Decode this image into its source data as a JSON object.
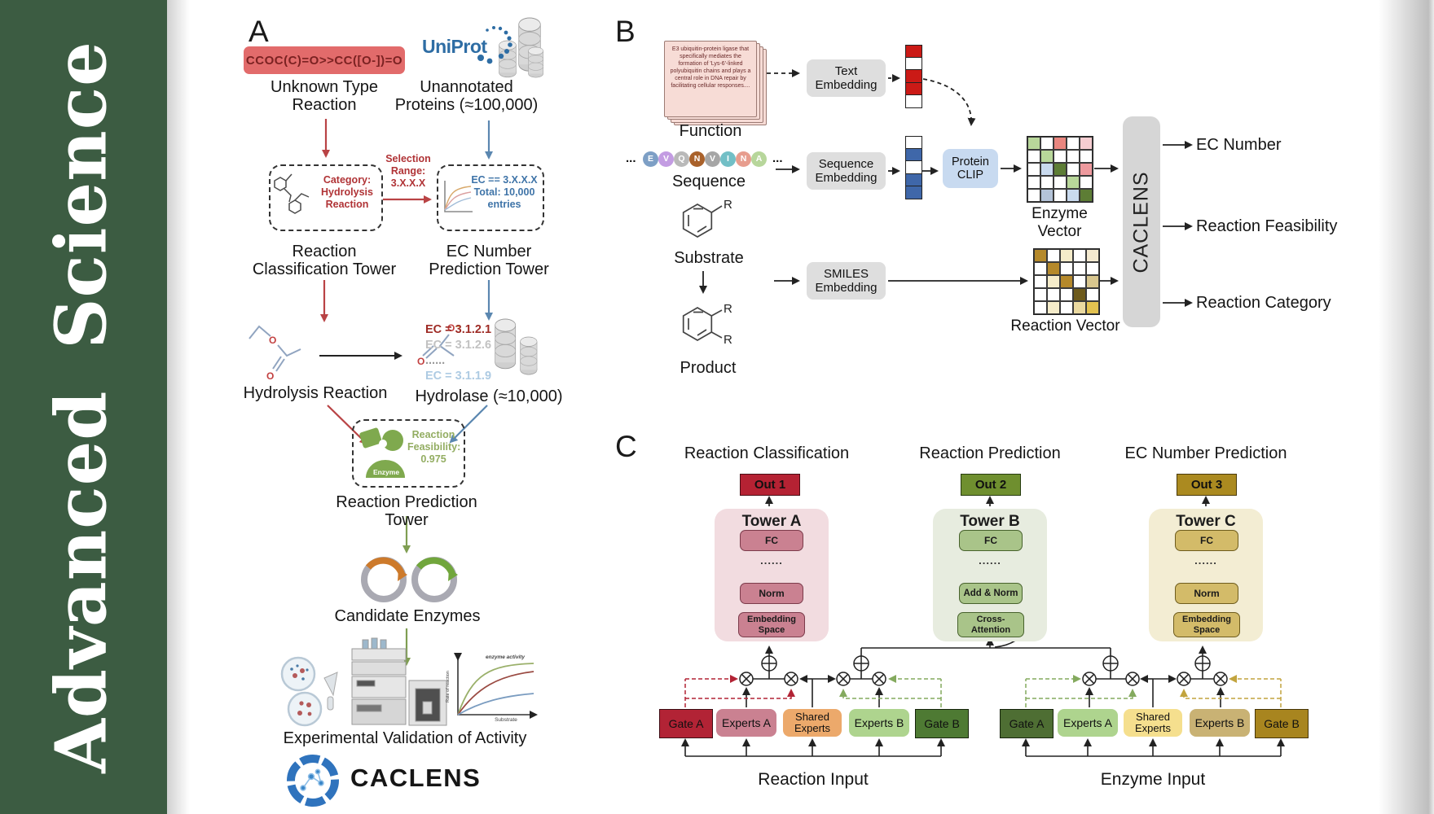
{
  "journal": {
    "name": "Advanced  Science",
    "bg": "#3c5c42"
  },
  "panelA": {
    "label": "A",
    "smiles": "CCOC(C)=O>>CC([O-])=O",
    "unknownLabel": "Unknown Type\nReaction",
    "uniprot": "UniProt",
    "unannotatedLabel": "Unannotated\nProteins (≈100,000)",
    "categoryBox": "Category:\nHydrolysis\nReaction",
    "selection": "Selection\nRange:\n3.X.X.X",
    "ecBox": "EC == 3.X.X.X\nTotal: 10,000\nentries",
    "classTower": "Reaction\nClassification Tower",
    "ecTower": "EC Number\nPrediction Tower",
    "hydrolysisLabel": "Hydrolysis Reaction",
    "ecList": [
      {
        "text": "EC = 3.1.2.1",
        "color": "#9e2b25"
      },
      {
        "text": "EC = 3.1.2.6",
        "color": "#c2c2c2"
      },
      {
        "text": "......",
        "color": "#9a9a9a"
      },
      {
        "text": "EC = 3.1.1.9",
        "color": "#aecbe3"
      }
    ],
    "hydrolaseLabel": "Hydrolase (≈10,000)",
    "enzymeIcon": "Enzyme",
    "feasibility": "Reaction\nFeasibility:\n0.975",
    "predTower": "Reaction Prediction Tower",
    "candidateLabel": "Candidate Enzymes",
    "graph": {
      "ylabel": "Rate of reaction",
      "xlabel": "Substrate",
      "series": "enzyme activity"
    },
    "validationLabel": "Experimental Validation of Activity",
    "brand": "CACLENS"
  },
  "panelB": {
    "label": "B",
    "functionText": "E3 ubiquitin-protein ligase that specifically mediates the formation of 'Lys-6'-linked polyubiquitin chains and plays a central role in DNA repair by facilitating cellular responses....",
    "functionLabel": "Function",
    "ellipsis": "...",
    "sequence": [
      {
        "letter": "E",
        "color": "#7d9fc5"
      },
      {
        "letter": "V",
        "color": "#c39ce2"
      },
      {
        "letter": "Q",
        "color": "#b9b9b9"
      },
      {
        "letter": "N",
        "color": "#a9612a"
      },
      {
        "letter": "V",
        "color": "#a6a6a6"
      },
      {
        "letter": "I",
        "color": "#72bfc6"
      },
      {
        "letter": "N",
        "color": "#e79d8e"
      },
      {
        "letter": "A",
        "color": "#b7d69b"
      }
    ],
    "sequenceLabel": "Sequence",
    "substrateLabel": "Substrate",
    "productLabel": "Product",
    "rLabel": "R",
    "textEmbedding": "Text\nEmbedding",
    "sequenceEmbedding": "Sequence\nEmbedding",
    "smilesEmbedding": "SMILES\nEmbedding",
    "proteinClip": "Protein\nCLIP",
    "textVector": [
      "#cb1a16",
      "#ffffff",
      "#cb1a16",
      "#cb1a16",
      "#ffffff"
    ],
    "seqVector": [
      "#ffffff",
      "#3f67a9",
      "#ffffff",
      "#3f67a9",
      "#3f67a9"
    ],
    "enzymeVector": {
      "label": "Enzyme Vector",
      "cells": [
        [
          "#b8d79a",
          "#ffffff",
          "#e9867f",
          "#ffffff",
          "#f5cdd1"
        ],
        [
          "#ffffff",
          "#b8d79a",
          "#ffffff",
          "#ffffff",
          "#ffffff"
        ],
        [
          "#ffffff",
          "#c9daee",
          "#5d7d35",
          "#ffffff",
          "#ee9a9e"
        ],
        [
          "#ffffff",
          "#ffffff",
          "#ffffff",
          "#b8d79a",
          "#ffffff"
        ],
        [
          "#ffffff",
          "#b4c3d8",
          "#ffffff",
          "#c9daee",
          "#5d7d35"
        ]
      ]
    },
    "reactionVector": {
      "label": "Reaction Vector",
      "cells": [
        [
          "#b5892b",
          "#ffffff",
          "#f5ecca",
          "#ffffff",
          "#f4ead0"
        ],
        [
          "#ffffff",
          "#b5892b",
          "#ffffff",
          "#ffffff",
          "#ffffff"
        ],
        [
          "#ffffff",
          "#f5ecca",
          "#b5892b",
          "#ffffff",
          "#d8c68e"
        ],
        [
          "#ffffff",
          "#ffffff",
          "#ffffff",
          "#6d5a1c",
          "#ffffff"
        ],
        [
          "#ffffff",
          "#f5ecca",
          "#ffffff",
          "#ead9a0",
          "#e3c250"
        ]
      ]
    },
    "caclens": "CACLENS",
    "outputs": [
      "EC Number",
      "Reaction Feasibility",
      "Reaction Category"
    ]
  },
  "panelC": {
    "label": "C",
    "towers": [
      {
        "title": "Reaction Classification",
        "out": "Out 1",
        "name": "Tower A",
        "fc": "FC",
        "dots": "......",
        "mid": "Norm",
        "base": "Embedding\nSpace",
        "panelBg": "#f2dce0",
        "boxBg": "#ca8191",
        "boxBorder": "#7c3b4b",
        "outBg": "#b52233",
        "outBorder": "#4a0d15"
      },
      {
        "title": "Reaction Prediction",
        "out": "Out 2",
        "name": "Tower B",
        "fc": "FC",
        "dots": "......",
        "mid": "Add & Norm",
        "base": "Cross-\nAttention",
        "panelBg": "#e7ecdf",
        "boxBg": "#a9c489",
        "boxBorder": "#47622c",
        "outBg": "#6f8f2f",
        "outBorder": "#273c10"
      },
      {
        "title": "EC Number Prediction",
        "out": "Out 3",
        "name": "Tower C",
        "fc": "FC",
        "dots": "......",
        "mid": "Norm",
        "base": "Embedding\nSpace",
        "panelBg": "#f3edd3",
        "boxBg": "#d3bb69",
        "boxBorder": "#6e5c1d",
        "outBg": "#ab8a20",
        "outBorder": "#4a3a0a"
      }
    ],
    "groups": [
      {
        "label": "Reaction Input",
        "boxes": [
          {
            "text": "Gate A",
            "bg": "#b22335",
            "border": "#3d0e15"
          },
          {
            "text": "Experts A",
            "bg": "#ca8191"
          },
          {
            "text": "Shared\nExperts",
            "bg": "#eca96b"
          },
          {
            "text": "Experts B",
            "bg": "#aed48e"
          },
          {
            "text": "Gate B",
            "bg": "#4e7a33",
            "border": "#16240c"
          }
        ]
      },
      {
        "label": "Enzyme Input",
        "boxes": [
          {
            "text": "Gate A",
            "bg": "#4e6e33",
            "border": "#16240c"
          },
          {
            "text": "Experts A",
            "bg": "#aed48e"
          },
          {
            "text": "Shared\nExperts",
            "bg": "#f5df8e"
          },
          {
            "text": "Experts B",
            "bg": "#c9b274"
          },
          {
            "text": "Gate B",
            "bg": "#a8851f",
            "border": "#463508"
          }
        ]
      }
    ]
  }
}
